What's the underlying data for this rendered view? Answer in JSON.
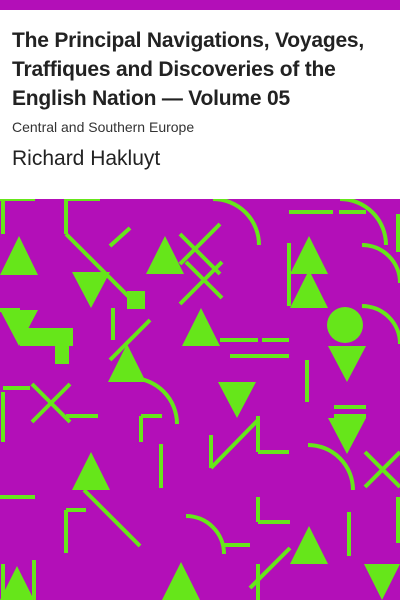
{
  "book": {
    "title": "The Principal Navigations, Voyages, Traffiques and Discoveries of the English Nation — Volume 05",
    "subtitle": "Central and Southern Europe",
    "author": "Richard Hakluyt"
  },
  "colors": {
    "background": "#ffffff",
    "accent": "#b30fb8",
    "pattern_background": "#b30fb8",
    "pattern_shapes": "#66e61a"
  }
}
